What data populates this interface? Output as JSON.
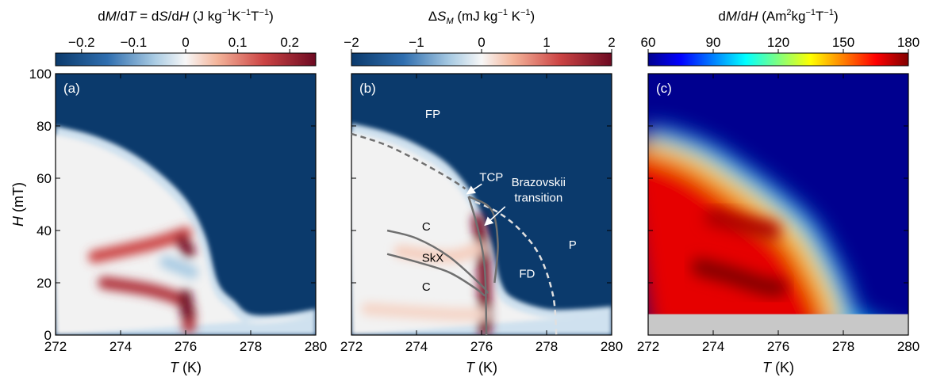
{
  "chart_data": [
    {
      "type": "heatmap",
      "panel_label": "(a)",
      "colorbar_title": {
        "t1": "d",
        "t2": "M",
        "t3": "/d",
        "t4": "T",
        "t5": " = d",
        "t6": "S",
        "t7": "/d",
        "t8": "H",
        "t9": " (J kg",
        "t10": "−1",
        "t11": "K",
        "t12": "−1",
        "t13": "T",
        "t14": "−1",
        "t15": ")"
      },
      "colorbar_ticks": [
        {
          "value": -0.2,
          "label": "−0.2"
        },
        {
          "value": -0.1,
          "label": "−0.1"
        },
        {
          "value": 0,
          "label": "0"
        },
        {
          "value": 0.1,
          "label": "0.1"
        },
        {
          "value": 0.2,
          "label": "0.2"
        }
      ],
      "colorbar_range": [
        -0.25,
        0.25
      ],
      "colormap": "blue-white-red",
      "xlabel": {
        "sym": "T",
        "unit": " (K)"
      },
      "ylabel": {
        "sym": "H",
        "unit": " (mT)"
      },
      "xlim": [
        272,
        280
      ],
      "ylim": [
        0,
        100
      ],
      "xticks": [
        {
          "value": 272,
          "label": "272"
        },
        {
          "value": 274,
          "label": "274"
        },
        {
          "value": 276,
          "label": "276"
        },
        {
          "value": 278,
          "label": "278"
        },
        {
          "value": 280,
          "label": "280"
        }
      ],
      "yticks": [
        {
          "value": 0,
          "label": "0"
        },
        {
          "value": 20,
          "label": "20"
        },
        {
          "value": 40,
          "label": "40"
        },
        {
          "value": 60,
          "label": "60"
        },
        {
          "value": 80,
          "label": "80"
        },
        {
          "value": 100,
          "label": "100"
        }
      ],
      "saturation_boundary": [
        [
          272,
          80
        ],
        [
          273,
          77
        ],
        [
          274,
          72
        ],
        [
          275,
          64
        ],
        [
          276,
          52
        ],
        [
          276.6,
          38
        ],
        [
          277,
          20
        ],
        [
          277.5,
          13
        ],
        [
          278,
          8
        ],
        [
          279,
          8
        ],
        [
          280,
          10
        ]
      ],
      "features": [
        {
          "name": "upper-red-band",
          "path": [
            [
              273.2,
              30
            ],
            [
              275,
              35
            ],
            [
              276,
              39
            ]
          ],
          "value": 0.15
        },
        {
          "name": "upper-red-spot",
          "path": [
            [
              275.9,
              36
            ],
            [
              276.1,
              32
            ]
          ],
          "value": 0.24
        },
        {
          "name": "lower-red-band",
          "path": [
            [
              273.5,
              20
            ],
            [
              275,
              17
            ],
            [
              276,
              12
            ],
            [
              276.1,
              3
            ]
          ],
          "value": 0.18
        },
        {
          "name": "lower-red-spot",
          "path": [
            [
              276,
              15
            ],
            [
              276.05,
              8
            ]
          ],
          "value": 0.25
        },
        {
          "name": "central-blue-patch",
          "path": [
            [
              275.4,
              28
            ],
            [
              276.2,
              24
            ]
          ],
          "value": -0.06
        }
      ]
    },
    {
      "type": "heatmap",
      "panel_label": "(b)",
      "colorbar_title": {
        "t1": "Δ",
        "t2": "S",
        "t3": "M",
        "t4": " (mJ kg",
        "t5": "−1",
        "t6": " K",
        "t7": "−1",
        "t8": ")"
      },
      "colorbar_ticks": [
        {
          "value": -2,
          "label": "−2"
        },
        {
          "value": -1,
          "label": "−1"
        },
        {
          "value": 0,
          "label": "0"
        },
        {
          "value": 1,
          "label": "1"
        },
        {
          "value": 2,
          "label": "2"
        }
      ],
      "colorbar_range": [
        -2,
        2
      ],
      "colormap": "blue-white-red",
      "xlabel": {
        "sym": "T",
        "unit": " (K)"
      },
      "xlim": [
        272,
        280
      ],
      "ylim": [
        0,
        100
      ],
      "xticks": [
        {
          "value": 272,
          "label": "272"
        },
        {
          "value": 274,
          "label": "274"
        },
        {
          "value": 276,
          "label": "276"
        },
        {
          "value": 278,
          "label": "278"
        },
        {
          "value": 280,
          "label": "280"
        }
      ],
      "saturation_boundary": [
        [
          272,
          81
        ],
        [
          273,
          78
        ],
        [
          274,
          73
        ],
        [
          275,
          65
        ],
        [
          275.8,
          52
        ],
        [
          276.3,
          35
        ],
        [
          276.6,
          20
        ],
        [
          277,
          14
        ],
        [
          278,
          10
        ],
        [
          279,
          10
        ],
        [
          280,
          11
        ]
      ],
      "phase_lines": [
        {
          "name": "dashed-fp-boundary",
          "style": "dashed",
          "color": "#707070",
          "points": [
            [
              272,
              77
            ],
            [
              273,
              73
            ],
            [
              274,
              67
            ],
            [
              275,
              60
            ],
            [
              275.5,
              56
            ]
          ]
        },
        {
          "name": "dashed-p-boundary",
          "style": "dashed",
          "color": "#e0e0e0",
          "points": [
            [
              275.8,
              51
            ],
            [
              276.5,
              47
            ],
            [
              277.2,
              40
            ],
            [
              277.8,
              30
            ],
            [
              278.2,
              15
            ],
            [
              278.3,
              0
            ]
          ]
        },
        {
          "name": "skx-upper-boundary",
          "style": "solid",
          "color": "#707070",
          "points": [
            [
              273.1,
              40
            ],
            [
              274,
              37
            ],
            [
              275,
              30
            ],
            [
              276,
              19
            ],
            [
              276.2,
              16
            ]
          ]
        },
        {
          "name": "skx-lower-boundary",
          "style": "solid",
          "color": "#707070",
          "points": [
            [
              273.1,
              31
            ],
            [
              274,
              28
            ],
            [
              275,
              24
            ],
            [
              275.8,
              18
            ],
            [
              276.1,
              15
            ]
          ]
        },
        {
          "name": "brazovskii-line",
          "style": "solid",
          "color": "#707070",
          "points": [
            [
              275.6,
              53
            ],
            [
              275.9,
              40
            ],
            [
              276.1,
              25
            ],
            [
              276.15,
              0
            ]
          ]
        },
        {
          "name": "tcp-branch-line",
          "style": "solid",
          "color": "#707070",
          "points": [
            [
              275.6,
              53
            ],
            [
              276.3,
              48
            ],
            [
              276.5,
              35
            ],
            [
              276.4,
              20
            ]
          ]
        }
      ],
      "features": [
        {
          "name": "red-transition-ridge",
          "path": [
            [
              275.9,
              44
            ],
            [
              276.05,
              30
            ],
            [
              276.1,
              10
            ],
            [
              276.1,
              2
            ]
          ],
          "value": 1.9
        },
        {
          "name": "pale-red-band",
          "path": [
            [
              273.5,
              32
            ],
            [
              275,
              30
            ],
            [
              275.9,
              33
            ]
          ],
          "value": 0.3
        },
        {
          "name": "pale-red-lower",
          "path": [
            [
              272.5,
              10
            ],
            [
              275,
              8
            ],
            [
              276,
              8
            ]
          ],
          "value": 0.25
        }
      ],
      "annotations": [
        {
          "text": "FP",
          "x": 274.5,
          "y": 83,
          "color": "#ffffff"
        },
        {
          "text": "TCP",
          "x": 276.3,
          "y": 59,
          "color": "#ffffff",
          "arrow_to": [
            275.55,
            54
          ]
        },
        {
          "text": "Brazovskii",
          "x": 277.75,
          "y": 57,
          "color": "#ffffff",
          "arrow_to": [
            276.1,
            42
          ]
        },
        {
          "text": "transition",
          "x": 277.75,
          "y": 51,
          "color": "#ffffff"
        },
        {
          "text": "C",
          "x": 274.3,
          "y": 40,
          "color": "#000000"
        },
        {
          "text": "SkX",
          "x": 274.5,
          "y": 28,
          "color": "#000000"
        },
        {
          "text": "C",
          "x": 274.3,
          "y": 17,
          "color": "#000000"
        },
        {
          "text": "FD",
          "x": 277.4,
          "y": 22,
          "color": "#ffffff"
        },
        {
          "text": "P",
          "x": 278.8,
          "y": 33,
          "color": "#ffffff"
        }
      ]
    },
    {
      "type": "heatmap",
      "panel_label": "(c)",
      "colorbar_title": {
        "t1": "d",
        "t2": "M",
        "t3": "/d",
        "t4": "H",
        "t5": " (Am",
        "t6": "2",
        "t7": "kg",
        "t8": "−1",
        "t9": "T",
        "t10": "−1",
        "t11": ")"
      },
      "colorbar_ticks": [
        {
          "value": 60,
          "label": "60"
        },
        {
          "value": 90,
          "label": "90"
        },
        {
          "value": 120,
          "label": "120"
        },
        {
          "value": 150,
          "label": "150"
        },
        {
          "value": 180,
          "label": "180"
        }
      ],
      "colorbar_range": [
        60,
        180
      ],
      "colormap": "jet",
      "xlabel": {
        "sym": "T",
        "unit": " (K)"
      },
      "xlim": [
        272,
        280
      ],
      "ylim": [
        0,
        100
      ],
      "xticks": [
        {
          "value": 272,
          "label": "272"
        },
        {
          "value": 274,
          "label": "274"
        },
        {
          "value": 276,
          "label": "276"
        },
        {
          "value": 278,
          "label": "278"
        },
        {
          "value": 280,
          "label": "280"
        }
      ],
      "no_data_below": 8,
      "no_data_color": "#c8c8c8",
      "saturation_boundary": [
        [
          272,
          80
        ],
        [
          273,
          77
        ],
        [
          274,
          72
        ],
        [
          275,
          64
        ],
        [
          276,
          55
        ],
        [
          277,
          44
        ],
        [
          277.6,
          32
        ],
        [
          278,
          22
        ],
        [
          278.3,
          12
        ],
        [
          278.4,
          8
        ]
      ],
      "features": [
        {
          "name": "upper-dark-band",
          "path": [
            [
              274,
              45
            ],
            [
              275,
              42
            ],
            [
              275.8,
              40
            ]
          ],
          "value": 175
        },
        {
          "name": "lower-dark-band",
          "path": [
            [
              273.6,
              26
            ],
            [
              274.5,
              23
            ],
            [
              275.5,
              19
            ],
            [
              276,
              18
            ]
          ],
          "value": 180
        }
      ]
    }
  ]
}
